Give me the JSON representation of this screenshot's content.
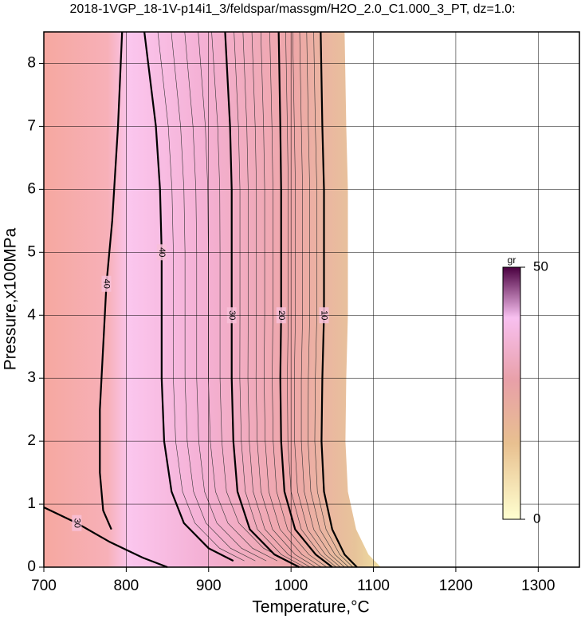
{
  "chart_data": {
    "type": "contour",
    "title": "2018-1VGP_18-1V-p14i1_3/feldspar/massgm/H2O_2.0_C1.000_3_PT, dz=1.0:",
    "x_label": "Temperature,°C",
    "y_label": "Pressure,x100MPa",
    "xlim": [
      700,
      1350
    ],
    "ylim": [
      0,
      8.5
    ],
    "xticks": [
      700,
      800,
      900,
      1000,
      1100,
      1200,
      1300
    ],
    "yticks": [
      0,
      1,
      2,
      3,
      4,
      5,
      6,
      7,
      8
    ],
    "grid": true,
    "contours": [
      {
        "level": 40,
        "x": [
          795,
          790,
          783,
          776,
          772,
          768,
          768,
          772,
          782
        ],
        "y": [
          8.5,
          7,
          5.5,
          4.5,
          3.5,
          2.5,
          1.5,
          0.9,
          0.6
        ]
      },
      {
        "level": 40,
        "x": [
          822,
          836,
          841,
          843,
          843,
          846,
          855,
          870,
          900,
          930
        ],
        "y": [
          8.5,
          7,
          6,
          5,
          3,
          2,
          1.2,
          0.7,
          0.3,
          0.1
        ]
      },
      {
        "level": 30,
        "x": [
          920,
          926,
          928,
          928,
          928,
          930,
          935,
          950,
          980,
          1010
        ],
        "y": [
          8.5,
          7,
          6,
          4,
          3,
          2,
          1.2,
          0.6,
          0.2,
          0
        ]
      },
      {
        "level": 20,
        "x": [
          985,
          987,
          988,
          988,
          987,
          988,
          992,
          1005,
          1030,
          1050
        ],
        "y": [
          8.5,
          7,
          6,
          4,
          3,
          2,
          1.2,
          0.6,
          0.2,
          0
        ]
      },
      {
        "level": 10,
        "x": [
          1036,
          1038,
          1040,
          1040,
          1038,
          1037,
          1040,
          1050,
          1065,
          1080
        ],
        "y": [
          8.5,
          7,
          6,
          4,
          3,
          2,
          1.2,
          0.6,
          0.2,
          0
        ]
      },
      {
        "level": 30,
        "x": [
          700,
          740,
          780,
          820,
          850
        ],
        "y": [
          0.95,
          0.7,
          0.4,
          0.15,
          0
        ]
      }
    ],
    "colorbar": {
      "label": "gr",
      "lim": [
        0,
        50
      ],
      "ticks": [
        0,
        50
      ]
    }
  }
}
